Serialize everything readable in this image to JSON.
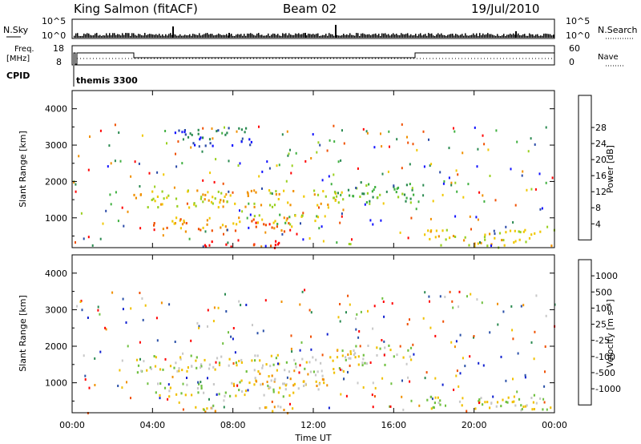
{
  "header": {
    "station": "King Salmon (fitACF)",
    "beam": "Beam 02",
    "date": "19/Jul/2010"
  },
  "sky_panel": {
    "left_label": "N.Sky",
    "right_label": "N.Search",
    "left_ticks": [
      "10^5",
      "10^0"
    ],
    "right_ticks": [
      "10^5",
      "10^0"
    ]
  },
  "freq_panel": {
    "left_label_1": "Freq.",
    "left_label_2": "[MHz]",
    "right_label": "Nave",
    "left_ticks": [
      "18",
      "8"
    ],
    "right_ticks": [
      "60",
      "0"
    ]
  },
  "cpid": {
    "label": "CPID",
    "value": "themis 3300"
  },
  "chart_data": [
    {
      "type": "heatmap",
      "name": "power",
      "ylabel": "Slant Range [km]",
      "y_ticks": [
        "1000",
        "2000",
        "3000",
        "4000"
      ],
      "ylim": [
        180,
        4500
      ],
      "colorbar_label": "Power [dB]",
      "colorbar_ticks": [
        "4",
        "8",
        "12",
        "16",
        "20",
        "24",
        "28"
      ],
      "colorbar_colors": [
        "#1010ff",
        "#2a4aa8",
        "#2a8a50",
        "#40b040",
        "#9ad020",
        "#f0c800",
        "#f09000",
        "#f05000",
        "#ff0000"
      ],
      "regions": [
        {
          "t0": 3.0,
          "t1": 13.5,
          "r0": 1300,
          "r1": 1800,
          "level": 5
        },
        {
          "t0": 4.0,
          "t1": 11.0,
          "r0": 650,
          "r1": 1050,
          "level": 6
        },
        {
          "t0": 9.0,
          "t1": 12.5,
          "r0": 850,
          "r1": 1150,
          "level": 4
        },
        {
          "t0": 13.0,
          "t1": 17.0,
          "r0": 1450,
          "r1": 2050,
          "level": 3
        },
        {
          "t0": 17.5,
          "t1": 24.0,
          "r0": 250,
          "r1": 700,
          "level": 5
        },
        {
          "t0": 6.5,
          "t1": 10.5,
          "r0": 200,
          "r1": 400,
          "level": 8
        },
        {
          "t0": 5.0,
          "t1": 9.0,
          "r0": 3000,
          "r1": 3500,
          "level": 1
        }
      ]
    },
    {
      "type": "heatmap",
      "name": "velocity",
      "ylabel": "Slant Range [km]",
      "y_ticks": [
        "1000",
        "2000",
        "3000",
        "4000"
      ],
      "ylim": [
        180,
        4500
      ],
      "colorbar_label": "Velocity [m s⁻¹]",
      "colorbar_ticks": [
        "1000",
        "500",
        "100",
        "25",
        "-25",
        "-100",
        "-500",
        "-1000"
      ],
      "colorbar_colors": [
        "#1020d0",
        "#2a50a8",
        "#2a8a50",
        "#70c040",
        "#c8c8c8",
        "#f0c000",
        "#f09000",
        "#f05000",
        "#ff0000"
      ],
      "regions": [
        {
          "t0": 3.0,
          "t1": 13.5,
          "r0": 1300,
          "r1": 1800,
          "level": 4
        },
        {
          "t0": 4.0,
          "t1": 11.0,
          "r0": 650,
          "r1": 1050,
          "level": 4
        },
        {
          "t0": 8.0,
          "t1": 12.5,
          "r0": 850,
          "r1": 1300,
          "level": 5
        },
        {
          "t0": 13.0,
          "t1": 17.0,
          "r0": 1500,
          "r1": 2050,
          "level": 4
        },
        {
          "t0": 17.5,
          "t1": 24.0,
          "r0": 250,
          "r1": 700,
          "level": 4
        },
        {
          "t0": 6.0,
          "t1": 11.0,
          "r0": 200,
          "r1": 400,
          "level": 5
        }
      ]
    }
  ],
  "x_axis": {
    "label": "Time UT",
    "ticks": [
      "00:00",
      "04:00",
      "08:00",
      "12:00",
      "16:00",
      "20:00",
      "00:00"
    ],
    "xlim": [
      0,
      24
    ]
  }
}
